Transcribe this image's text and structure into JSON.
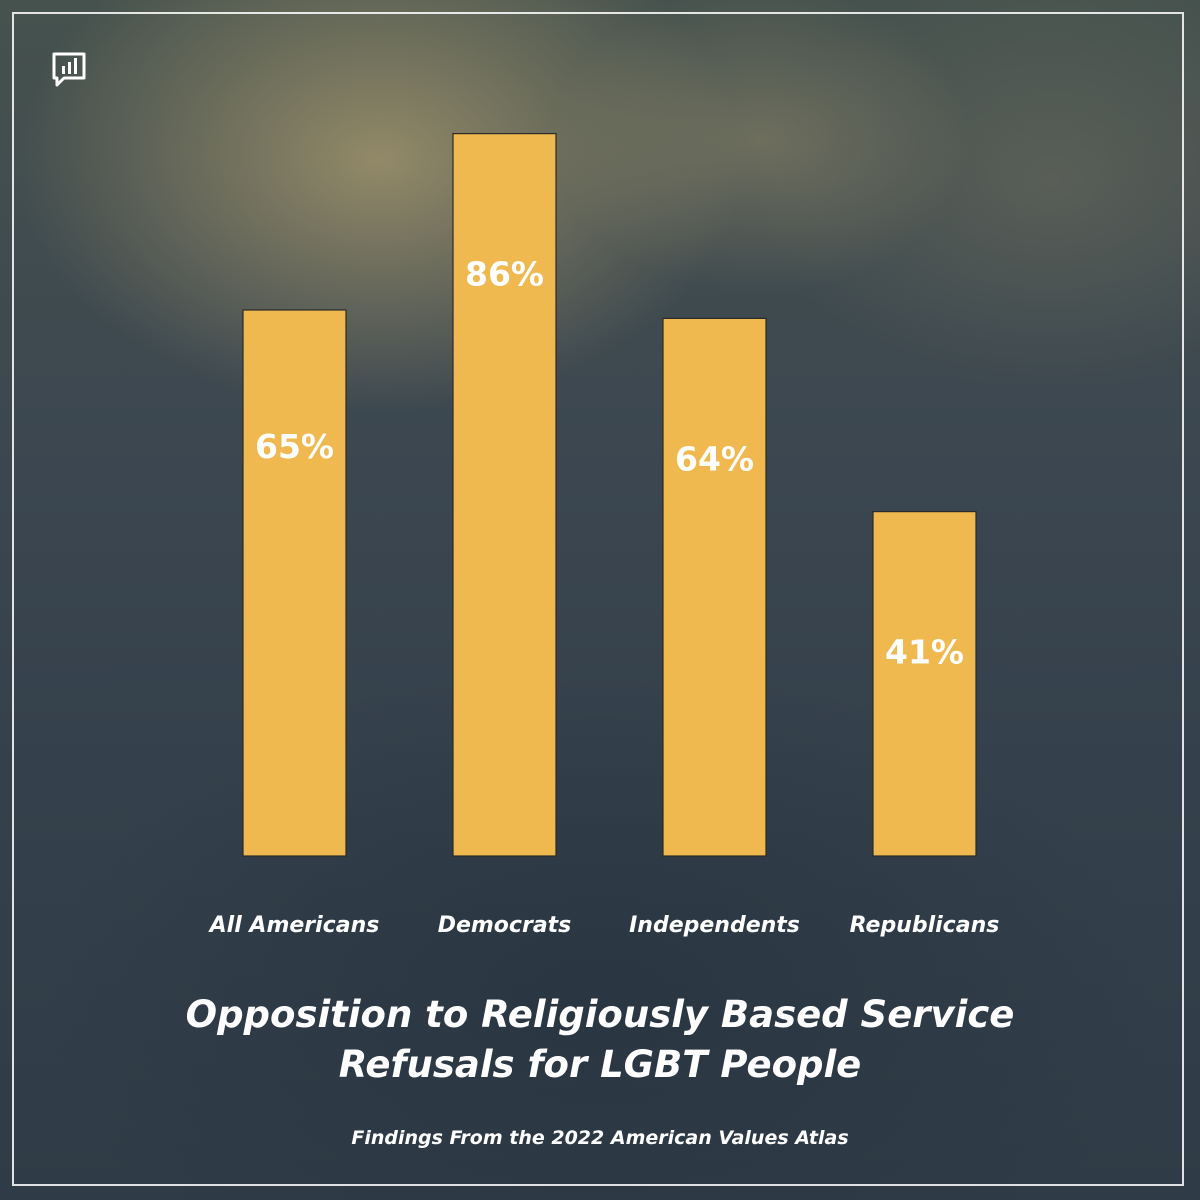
{
  "title_lines": [
    "Opposition to Religiously Based Service",
    "Refusals for LGBT People"
  ],
  "subtitle": "Findings From the 2022 American Values Atlas",
  "colors": {
    "bar": "#f0b94f",
    "text": "#ffffff",
    "frame": "#ffffff"
  },
  "logo_icon": "bar-chart-speech-bubble-icon",
  "chart_data": {
    "type": "bar",
    "categories": [
      "All Americans",
      "Democrats",
      "Independents",
      "Republicans"
    ],
    "values": [
      65,
      86,
      64,
      41
    ],
    "value_labels": [
      "65%",
      "86%",
      "64%",
      "41%"
    ],
    "ylim": [
      0,
      100
    ],
    "title": "Opposition to Religiously Based Service Refusals for LGBT People",
    "xlabel": "",
    "ylabel": "",
    "grid": false,
    "legend": "none"
  }
}
